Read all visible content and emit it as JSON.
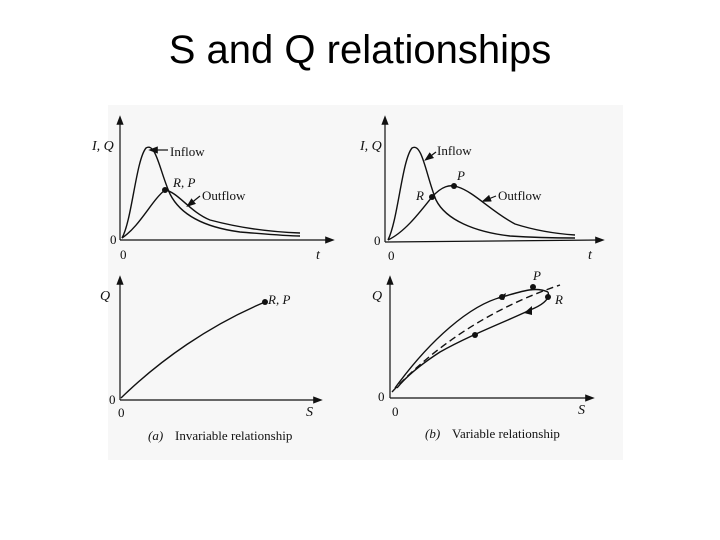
{
  "slide": {
    "title": "S and Q relationships"
  },
  "panels": {
    "a_top": {
      "y_axis_label": "I, Q",
      "x_axis_label": "t",
      "origin_y": "0",
      "origin_x": "0",
      "inflow_label": "Inflow",
      "outflow_label": "Outflow",
      "point_label": "R, P"
    },
    "b_top": {
      "y_axis_label": "I, Q",
      "x_axis_label": "t",
      "origin_y": "0",
      "origin_x": "0",
      "inflow_label": "Inflow",
      "outflow_label": "Outflow",
      "r_label": "R",
      "p_label": "P"
    },
    "a_bottom": {
      "y_axis_label": "Q",
      "x_axis_label": "S",
      "origin_y": "0",
      "origin_x": "0",
      "point_label": "R, P"
    },
    "b_bottom": {
      "y_axis_label": "Q",
      "x_axis_label": "S",
      "origin_y": "0",
      "origin_x": "0",
      "p_label": "P",
      "r_label": "R"
    }
  },
  "captions": {
    "a": {
      "marker": "(a)",
      "text": "Invariable relationship"
    },
    "b": {
      "marker": "(b)",
      "text": "Variable relationship"
    }
  }
}
